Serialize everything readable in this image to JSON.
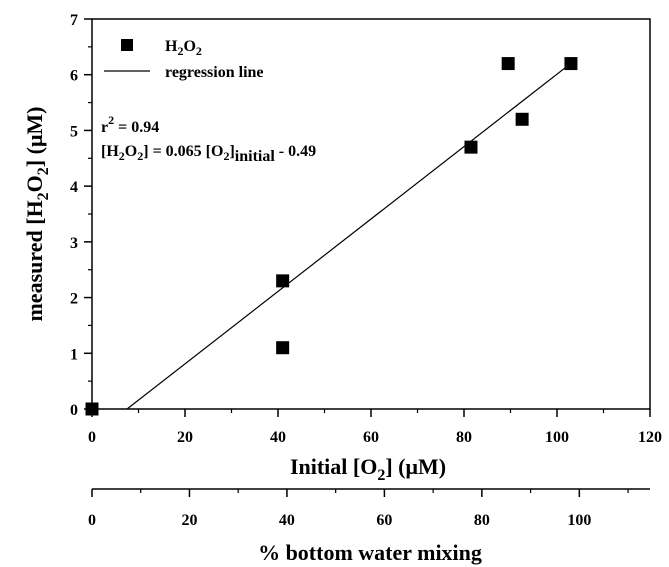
{
  "chart_data": {
    "type": "scatter",
    "xlabel": {
      "pre": "Initial [O",
      "sub": "2",
      "post": "] (μM)"
    },
    "ylabel": {
      "pre": "measured [H",
      "sub1": "2",
      "mid": "O",
      "sub2": "2",
      "post": "] (μM)"
    },
    "xlim": [
      0,
      120
    ],
    "ylim": [
      0,
      7
    ],
    "xticks": [
      "0",
      "20",
      "40",
      "60",
      "80",
      "100",
      "120"
    ],
    "yticks": [
      "0",
      "1",
      "2",
      "3",
      "4",
      "5",
      "6",
      "7"
    ],
    "series": [
      {
        "name": "H2O2",
        "points": [
          {
            "x": 0,
            "y": 0
          },
          {
            "x": 41,
            "y": 2.3
          },
          {
            "x": 41,
            "y": 1.1
          },
          {
            "x": 81.5,
            "y": 4.7
          },
          {
            "x": 89.5,
            "y": 6.2
          },
          {
            "x": 92.5,
            "y": 5.2
          },
          {
            "x": 103,
            "y": 6.2
          }
        ]
      }
    ],
    "regression": {
      "name": "regression line",
      "slope": 0.065,
      "intercept": -0.49,
      "x_range": [
        7.5,
        103
      ]
    },
    "legend": {
      "position": "top-left",
      "entries": [
        {
          "label_pre": "H",
          "label_sub1": "2",
          "label_mid": "O",
          "label_sub2": "2"
        },
        {
          "label": "regression line"
        }
      ]
    },
    "annotations": {
      "r2_pre": "r",
      "r2_sup": "2",
      "r2_post": " = 0.94",
      "eq_a": "[H",
      "eq_b": "2",
      "eq_c": "O",
      "eq_d": "2",
      "eq_e": "] = 0.065 [O",
      "eq_f": "2",
      "eq_g": "]",
      "eq_h": "initial",
      "eq_i": "  - 0.49"
    },
    "secondary_axis": {
      "label": "% bottom water mixing",
      "xlim": [
        0,
        114.5
      ],
      "ticks": [
        "0",
        "20",
        "40",
        "60",
        "80",
        "100"
      ]
    }
  }
}
